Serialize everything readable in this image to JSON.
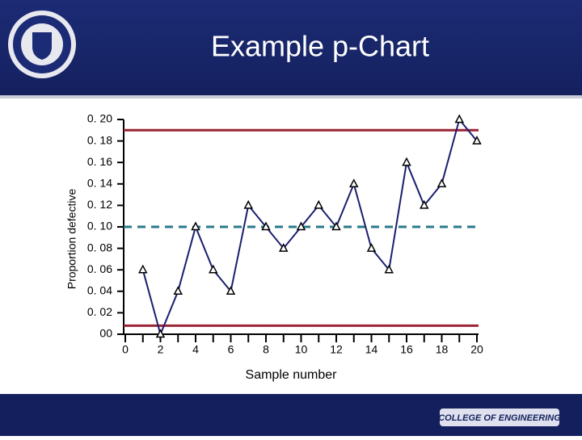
{
  "header": {
    "title": "Example p-Chart"
  },
  "footer": {
    "logo_text": "COLLEGE OF ENGINEERING"
  },
  "chart_data": {
    "type": "line",
    "xlabel": "Sample number",
    "ylabel": "Proportion defective",
    "series": [
      {
        "color": "#1a1f6e",
        "marker": "triangle",
        "x": [
          1,
          2,
          3,
          4,
          5,
          6,
          7,
          8,
          9,
          10,
          11,
          12,
          13,
          14,
          15,
          16,
          17,
          18,
          19,
          20
        ],
        "values": [
          0.06,
          0.0,
          0.04,
          0.1,
          0.06,
          0.04,
          0.12,
          0.1,
          0.08,
          0.1,
          0.12,
          0.1,
          0.14,
          0.08,
          0.06,
          0.16,
          0.12,
          0.14,
          0.2,
          0.18
        ]
      }
    ],
    "reference_lines": [
      {
        "value": 0.19,
        "color": "#9b2335",
        "style": "solid"
      },
      {
        "value": 0.1,
        "color": "#2a7a8a",
        "style": "dashed"
      },
      {
        "value": 0.008,
        "color": "#9b2335",
        "style": "solid"
      }
    ],
    "xlim": [
      0,
      20
    ],
    "xticks": [
      0,
      2,
      4,
      6,
      8,
      10,
      12,
      14,
      16,
      18,
      20
    ],
    "xminorticks": [
      1,
      3,
      5,
      7,
      9,
      11,
      13,
      15,
      17,
      19
    ],
    "ylim": [
      0,
      0.2
    ],
    "yticks": [
      {
        "value": 0,
        "label": "00"
      },
      {
        "value": 0.02,
        "label": "0. 02"
      },
      {
        "value": 0.04,
        "label": "0. 04"
      },
      {
        "value": 0.06,
        "label": "0. 06"
      },
      {
        "value": 0.08,
        "label": "0. 08"
      },
      {
        "value": 0.1,
        "label": "0. 10"
      },
      {
        "value": 0.12,
        "label": "0. 12"
      },
      {
        "value": 0.14,
        "label": "0. 14"
      },
      {
        "value": 0.16,
        "label": "0. 16"
      },
      {
        "value": 0.18,
        "label": "0. 18"
      },
      {
        "value": 0.2,
        "label": "0. 20"
      }
    ]
  }
}
